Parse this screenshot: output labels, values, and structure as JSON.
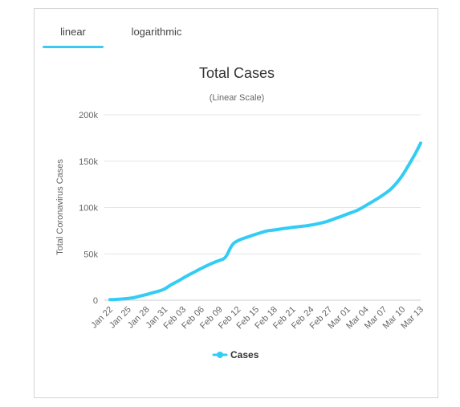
{
  "tabs": [
    {
      "label": "linear",
      "active": true
    },
    {
      "label": "logarithmic",
      "active": false
    }
  ],
  "chart_data": {
    "type": "line",
    "title": "Total Cases",
    "subtitle": "(Linear Scale)",
    "ylabel": "Total Coronavirus Cases",
    "xlabel": "",
    "ylim": [
      0,
      200000
    ],
    "yticks": [
      0,
      50000,
      100000,
      150000,
      200000
    ],
    "ytick_labels": [
      "0",
      "50k",
      "100k",
      "150k",
      "200k"
    ],
    "grid": true,
    "legend": "bottom-center",
    "x_tick_labels": [
      "Jan 22",
      "Jan 25",
      "Jan 28",
      "Jan 31",
      "Feb 03",
      "Feb 06",
      "Feb 09",
      "Feb 12",
      "Feb 15",
      "Feb 18",
      "Feb 21",
      "Feb 24",
      "Feb 27",
      "Mar 01",
      "Mar 04",
      "Mar 07",
      "Mar 10",
      "Mar 13"
    ],
    "x_tick_step_days": 3,
    "color": "#33ccf5",
    "series": [
      {
        "name": "Cases",
        "values": [
          580,
          845,
          1320,
          2010,
          2800,
          4600,
          6100,
          8100,
          9800,
          11900,
          16800,
          19900,
          23900,
          27600,
          30800,
          34400,
          37600,
          40600,
          43100,
          45200,
          60400,
          64500,
          66900,
          69100,
          71300,
          73300,
          75200,
          75700,
          76800,
          77800,
          78600,
          79300,
          80100,
          81000,
          82300,
          83700,
          85700,
          88300,
          90400,
          93100,
          95300,
          98200,
          102100,
          106000,
          109900,
          114300,
          119000,
          126000,
          134300,
          145400,
          156400,
          169400
        ]
      }
    ]
  }
}
